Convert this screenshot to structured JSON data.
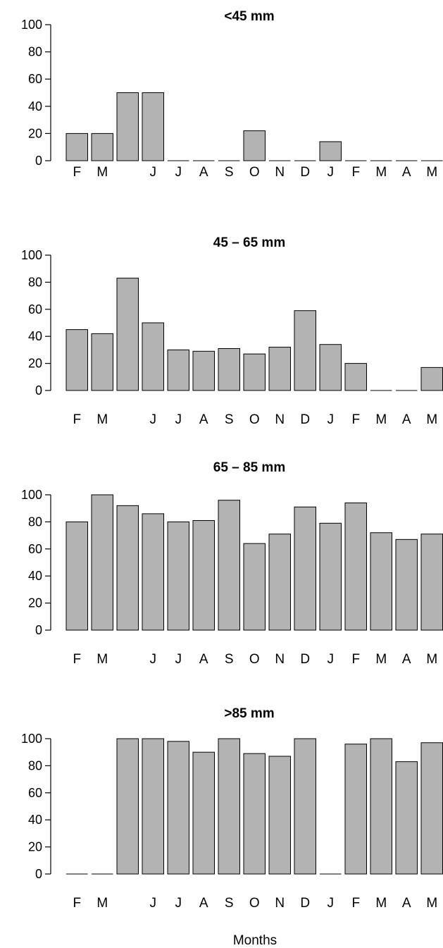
{
  "chart_data": [
    {
      "type": "bar",
      "title": "<45 mm",
      "categories": [
        "F",
        "M",
        "",
        "J",
        "J",
        "A",
        "S",
        "O",
        "N",
        "D",
        "J",
        "F",
        "M",
        "A",
        "M"
      ],
      "values": [
        20,
        20,
        50,
        50,
        0,
        0,
        0,
        22,
        0,
        0,
        14,
        0,
        0,
        0,
        0
      ],
      "ylim": [
        0,
        100
      ],
      "yticks": [
        0,
        20,
        40,
        60,
        80,
        100
      ],
      "grid": false
    },
    {
      "type": "bar",
      "title": "45 – 65 mm",
      "categories": [
        "F",
        "M",
        "",
        "J",
        "J",
        "A",
        "S",
        "O",
        "N",
        "D",
        "J",
        "F",
        "M",
        "A",
        "M"
      ],
      "values": [
        45,
        42,
        83,
        50,
        30,
        29,
        31,
        27,
        32,
        59,
        34,
        20,
        0,
        0,
        17
      ],
      "ylim": [
        0,
        100
      ],
      "yticks": [
        0,
        20,
        40,
        60,
        80,
        100
      ],
      "grid": false
    },
    {
      "type": "bar",
      "title": "65 – 85 mm",
      "categories": [
        "F",
        "M",
        "",
        "J",
        "J",
        "A",
        "S",
        "O",
        "N",
        "D",
        "J",
        "F",
        "M",
        "A",
        "M"
      ],
      "values": [
        80,
        100,
        92,
        86,
        80,
        81,
        96,
        64,
        71,
        91,
        79,
        94,
        72,
        67,
        71
      ],
      "ylim": [
        0,
        100
      ],
      "yticks": [
        0,
        20,
        40,
        60,
        80,
        100
      ],
      "grid": false
    },
    {
      "type": "bar",
      "title": ">85 mm",
      "categories": [
        "F",
        "M",
        "",
        "J",
        "J",
        "A",
        "S",
        "O",
        "N",
        "D",
        "J",
        "F",
        "M",
        "A",
        "M"
      ],
      "values": [
        0,
        0,
        100,
        100,
        98,
        90,
        100,
        89,
        87,
        100,
        0,
        96,
        100,
        83,
        97
      ],
      "ylim": [
        0,
        100
      ],
      "yticks": [
        0,
        20,
        40,
        60,
        80,
        100
      ],
      "grid": false
    }
  ],
  "xlabel": "Months",
  "colors": {
    "bar_fill": "#b3b3b3",
    "bar_stroke": "#000000",
    "axis": "#000000"
  }
}
